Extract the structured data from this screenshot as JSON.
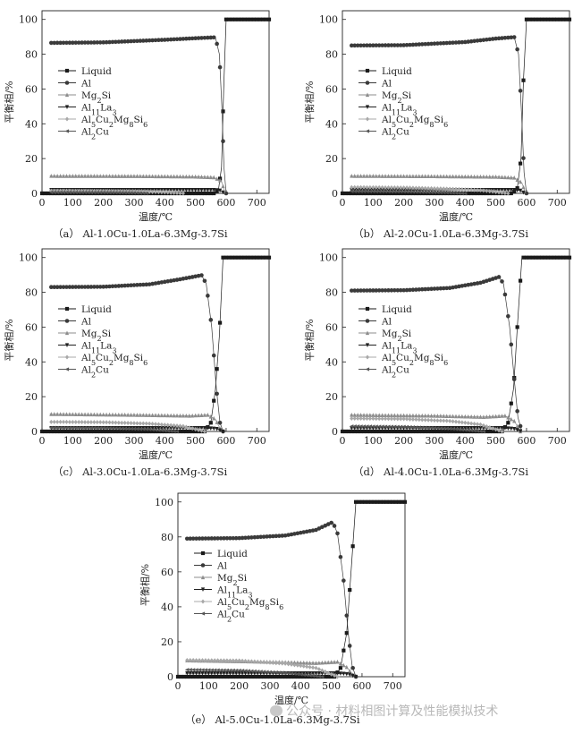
{
  "figure": {
    "watermark": "公众号 · 材料相图计算及性能模拟技术",
    "y_axis_label": "平衡相/%",
    "x_axis_label": "温度/℃",
    "x_ticks": [
      "0",
      "100",
      "200",
      "300",
      "400",
      "500",
      "600",
      "700"
    ],
    "y_ticks": [
      "0",
      "20",
      "40",
      "60",
      "80",
      "100"
    ],
    "legend": [
      "Liquid",
      "Al",
      "Mg2Si",
      "Al11La3",
      "Al5Cu2Mg8Si6",
      "Al2Cu"
    ],
    "colors": {
      "liquid": "#1a1a1a",
      "al": "#3a3a3a",
      "mg2si": "#8c8c8c",
      "al11la3": "#202020",
      "q_phase": "#a8a8a8",
      "al2cu": "#555555"
    }
  },
  "chart_data": [
    {
      "type": "line",
      "label": "（a） Al-1.0Cu-1.0La-6.3Mg-3.7Si",
      "xlabel": "温度/℃",
      "ylabel": "平衡相/%",
      "xlim": [
        0,
        740
      ],
      "ylim": [
        0,
        105
      ],
      "series": [
        {
          "name": "Liquid",
          "x": [
            0,
            560,
            575,
            585,
            592,
            600,
            740
          ],
          "values": [
            0,
            0,
            2,
            15,
            60,
            100,
            100
          ]
        },
        {
          "name": "Al",
          "x": [
            25,
            200,
            400,
            500,
            565,
            578,
            586,
            593,
            600
          ],
          "values": [
            86.5,
            86.8,
            88.3,
            89.2,
            89.7,
            80,
            50,
            15,
            0
          ]
        },
        {
          "name": "Mg2Si",
          "x": [
            25,
            300,
            500,
            560,
            585,
            597
          ],
          "values": [
            10,
            9.9,
            9.6,
            9.2,
            7,
            0
          ]
        },
        {
          "name": "Al11La3",
          "x": [
            25,
            560,
            580,
            595
          ],
          "values": [
            2,
            2,
            1.7,
            0
          ]
        },
        {
          "name": "Al5Cu2Mg8Si6",
          "x": [
            25,
            150,
            300,
            400,
            465
          ],
          "values": [
            1.5,
            1.4,
            1.1,
            0.6,
            0
          ]
        },
        {
          "name": "Al2Cu",
          "x": [
            25,
            200,
            300,
            345
          ],
          "values": [
            0.6,
            0.5,
            0.3,
            0
          ]
        }
      ]
    },
    {
      "type": "line",
      "label": "（b） Al-2.0Cu-1.0La-6.3Mg-3.7Si",
      "xlabel": "温度/℃",
      "ylabel": "平衡相/%",
      "xlim": [
        0,
        740
      ],
      "ylim": [
        0,
        105
      ],
      "series": [
        {
          "name": "Liquid",
          "x": [
            0,
            555,
            570,
            582,
            590,
            600,
            740
          ],
          "values": [
            0,
            0,
            3,
            20,
            65,
            100,
            100
          ]
        },
        {
          "name": "Al",
          "x": [
            25,
            200,
            400,
            500,
            560,
            574,
            584,
            592,
            600
          ],
          "values": [
            85,
            85.2,
            87,
            89,
            89.8,
            80,
            45,
            12,
            0
          ]
        },
        {
          "name": "Mg2Si",
          "x": [
            25,
            300,
            500,
            560,
            585,
            597
          ],
          "values": [
            10,
            9.8,
            9.5,
            9,
            6,
            0
          ]
        },
        {
          "name": "Al11La3",
          "x": [
            25,
            560,
            580,
            595
          ],
          "values": [
            2,
            2,
            1.6,
            0
          ]
        },
        {
          "name": "Al5Cu2Mg8Si6",
          "x": [
            25,
            200,
            350,
            450,
            540
          ],
          "values": [
            3.5,
            3.3,
            2.6,
            1.8,
            0
          ]
        },
        {
          "name": "Al2Cu",
          "x": [
            25,
            200,
            330,
            400
          ],
          "values": [
            1.2,
            1,
            0.5,
            0
          ]
        }
      ]
    },
    {
      "type": "line",
      "label": "（c） Al-3.0Cu-1.0La-6.3Mg-3.7Si",
      "xlabel": "温度/℃",
      "ylabel": "平衡相/%",
      "xlim": [
        0,
        740
      ],
      "ylim": [
        0,
        105
      ],
      "series": [
        {
          "name": "Liquid",
          "x": [
            0,
            530,
            550,
            565,
            578,
            590,
            740
          ],
          "values": [
            0,
            0,
            5,
            24,
            55,
            100,
            100
          ]
        },
        {
          "name": "Al",
          "x": [
            25,
            200,
            350,
            450,
            520,
            535,
            553,
            568,
            580,
            590
          ],
          "values": [
            83,
            83.2,
            84.6,
            87.5,
            89.8,
            85,
            60,
            25,
            5,
            0
          ]
        },
        {
          "name": "Mg2Si",
          "x": [
            25,
            300,
            480,
            540,
            565,
            585
          ],
          "values": [
            10,
            9.5,
            9,
            9.5,
            7,
            0
          ]
        },
        {
          "name": "Al11La3",
          "x": [
            25,
            540,
            570,
            590
          ],
          "values": [
            2,
            2,
            1.5,
            0
          ]
        },
        {
          "name": "Al5Cu2Mg8Si6",
          "x": [
            25,
            200,
            350,
            460,
            530
          ],
          "values": [
            5.5,
            5.3,
            4.5,
            3,
            0
          ]
        },
        {
          "name": "Al2Cu",
          "x": [
            25,
            200,
            350,
            440
          ],
          "values": [
            2.2,
            2,
            1.2,
            0
          ]
        }
      ]
    },
    {
      "type": "line",
      "label": "（d） Al-4.0Cu-1.0La-6.3Mg-3.7Si",
      "xlabel": "温度/℃",
      "ylabel": "平衡相/%",
      "xlim": [
        0,
        740
      ],
      "ylim": [
        0,
        105
      ],
      "series": [
        {
          "name": "Liquid",
          "x": [
            0,
            520,
            540,
            558,
            570,
            585,
            740
          ],
          "values": [
            0,
            0,
            5,
            25,
            60,
            100,
            100
          ]
        },
        {
          "name": "Al",
          "x": [
            25,
            200,
            350,
            450,
            510,
            525,
            545,
            560,
            572,
            585
          ],
          "values": [
            81,
            81.2,
            82.5,
            85.5,
            88.8,
            85,
            60,
            30,
            8,
            0
          ]
        },
        {
          "name": "Mg2Si",
          "x": [
            25,
            300,
            460,
            530,
            560,
            580
          ],
          "values": [
            9.5,
            9,
            8.3,
            9,
            6,
            0
          ]
        },
        {
          "name": "Al11La3",
          "x": [
            25,
            530,
            560,
            585
          ],
          "values": [
            2,
            2,
            1.5,
            0
          ]
        },
        {
          "name": "Al5Cu2Mg8Si6",
          "x": [
            25,
            200,
            350,
            450,
            520
          ],
          "values": [
            7.5,
            7.2,
            6,
            4,
            0
          ]
        },
        {
          "name": "Al2Cu",
          "x": [
            25,
            200,
            350,
            460
          ],
          "values": [
            3,
            2.7,
            1.6,
            0
          ]
        }
      ]
    },
    {
      "type": "line",
      "label": "（e） Al-5.0Cu-1.0La-6.3Mg-3.7Si",
      "xlabel": "温度/℃",
      "ylabel": "平衡相/%",
      "xlim": [
        0,
        740
      ],
      "ylim": [
        0,
        105
      ],
      "series": [
        {
          "name": "Liquid",
          "x": [
            0,
            510,
            530,
            550,
            565,
            580,
            740
          ],
          "values": [
            0,
            0,
            5,
            25,
            62,
            100,
            100
          ]
        },
        {
          "name": "Al",
          "x": [
            25,
            200,
            350,
            450,
            505,
            520,
            540,
            555,
            568,
            580
          ],
          "values": [
            79,
            79.3,
            80.8,
            84,
            88.5,
            82,
            55,
            25,
            6,
            0
          ]
        },
        {
          "name": "Mg2Si",
          "x": [
            25,
            300,
            450,
            520,
            550,
            575
          ],
          "values": [
            9.3,
            8.5,
            7.8,
            8.5,
            5.5,
            0
          ]
        },
        {
          "name": "Al11La3",
          "x": [
            25,
            520,
            555,
            580
          ],
          "values": [
            2,
            2,
            1.5,
            0
          ]
        },
        {
          "name": "Al5Cu2Mg8Si6",
          "x": [
            25,
            200,
            350,
            450,
            520
          ],
          "values": [
            9.5,
            9.2,
            7.5,
            5,
            0
          ]
        },
        {
          "name": "Al2Cu",
          "x": [
            25,
            200,
            350,
            470
          ],
          "values": [
            4,
            3.6,
            2.2,
            0
          ]
        }
      ]
    }
  ]
}
